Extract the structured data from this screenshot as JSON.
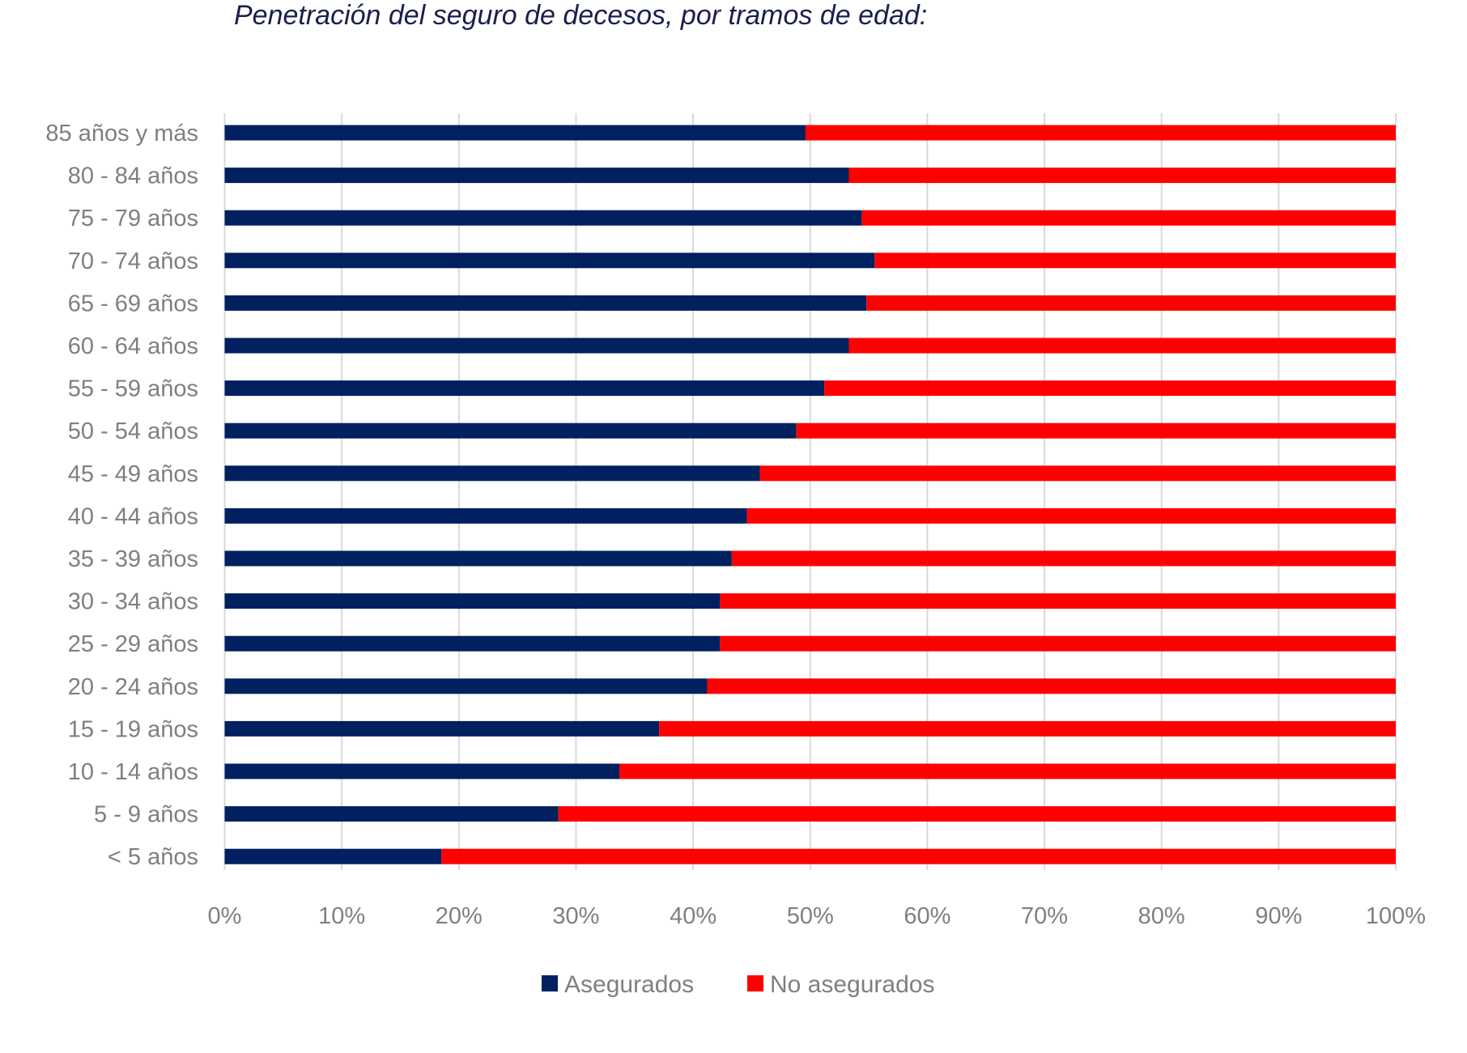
{
  "chart_data": {
    "type": "bar",
    "orientation": "horizontal",
    "stacked": "percent",
    "title": "Penetración del seguro de decesos, por tramos de edad:",
    "xlabel": "",
    "ylabel": "",
    "xlim": [
      0,
      100
    ],
    "x_ticks": [
      "0%",
      "10%",
      "20%",
      "30%",
      "40%",
      "50%",
      "60%",
      "70%",
      "80%",
      "90%",
      "100%"
    ],
    "grid": "vertical",
    "legend_position": "bottom",
    "categories": [
      "85 años y más",
      "80 - 84 años",
      "75 - 79 años",
      "70 - 74 años",
      "65 - 69 años",
      "60 - 64 años",
      "55 - 59 años",
      "50 - 54 años",
      "45 - 49 años",
      "40 - 44 años",
      "35 - 39 años",
      "30 - 34 años",
      "25 - 29 años",
      "20 - 24 años",
      "15 - 19 años",
      "10 - 14 años",
      "5 - 9 años",
      "< 5 años"
    ],
    "series": [
      {
        "name": "Asegurados",
        "color": "#002060",
        "values": [
          49.6,
          53.3,
          54.4,
          55.5,
          54.8,
          53.3,
          51.2,
          48.8,
          45.7,
          44.6,
          43.3,
          42.3,
          42.3,
          41.2,
          37.1,
          33.7,
          28.5,
          18.5
        ]
      },
      {
        "name": "No asegurados",
        "color": "#ff0000",
        "values": [
          50.4,
          46.7,
          45.6,
          44.5,
          45.2,
          46.7,
          48.8,
          51.2,
          54.3,
          55.4,
          56.7,
          57.7,
          57.7,
          58.8,
          62.9,
          66.3,
          71.5,
          81.5
        ]
      }
    ]
  }
}
